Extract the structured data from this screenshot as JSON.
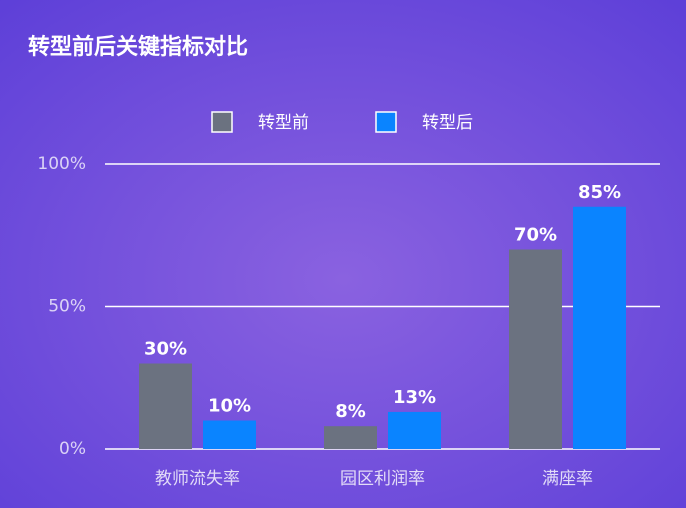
{
  "chart_data": {
    "type": "bar",
    "title": "转型前后关键指标对比",
    "categories": [
      "教师流失率",
      "园区利润率",
      "满座率"
    ],
    "series": [
      {
        "name": "转型前",
        "color": "#6b7280",
        "values": [
          30,
          8,
          70
        ],
        "value_labels": [
          "30%",
          "8%",
          "70%"
        ]
      },
      {
        "name": "转型后",
        "color": "#0a84ff",
        "values": [
          10,
          13,
          85
        ],
        "value_labels": [
          "10%",
          "13%",
          "85%"
        ]
      }
    ],
    "ylim": [
      0,
      100
    ],
    "yticks": [
      {
        "value": 0,
        "label": "0%"
      },
      {
        "value": 50,
        "label": "50%"
      },
      {
        "value": 100,
        "label": "100%"
      }
    ],
    "grid": true,
    "legend": "top"
  }
}
